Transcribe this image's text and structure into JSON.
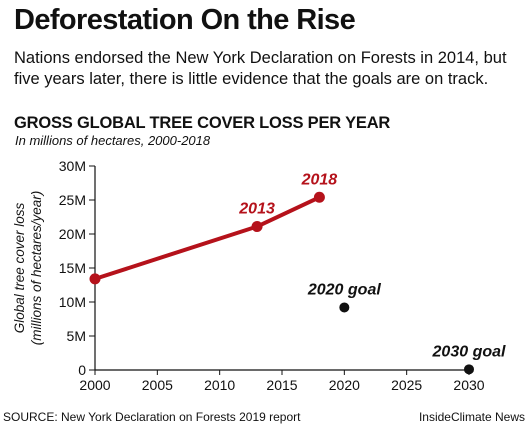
{
  "header": {
    "title": "Deforestation On the Rise",
    "subtitle": "Nations endorsed the New York Declaration on Forests in 2014, but five years later, there is little evidence that the goals are on track."
  },
  "chart_data": {
    "type": "line",
    "title": "GROSS GLOBAL TREE COVER LOSS PER YEAR",
    "subtitle": "In millions of hectares, 2000-2018",
    "xlabel": "",
    "ylabel": "Global tree cover loss (millions of hectares/year)",
    "ylabel_lines": [
      "Global tree cover loss",
      "(millions of hectares/year)"
    ],
    "xlim": [
      2000,
      2030
    ],
    "ylim": [
      0,
      30
    ],
    "x_ticks": [
      2000,
      2005,
      2010,
      2015,
      2020,
      2025,
      2030
    ],
    "y_ticks": [
      0,
      5,
      10,
      15,
      20,
      25,
      30
    ],
    "y_tick_labels": [
      "0",
      "5M",
      "10M",
      "15M",
      "20M",
      "25M",
      "30M"
    ],
    "grid": false,
    "series": [
      {
        "color": "#b5121b",
        "points": [
          {
            "x": 2000,
            "y": 13.4,
            "label": ""
          },
          {
            "x": 2013,
            "y": 21.1,
            "label": "2013"
          },
          {
            "x": 2018,
            "y": 25.4,
            "label": "2018"
          }
        ]
      }
    ],
    "goals": [
      {
        "x": 2020,
        "y": 9.2,
        "label": "2020 goal"
      },
      {
        "x": 2030,
        "y": 0.1,
        "label": "2030 goal"
      }
    ],
    "colors": {
      "series": "#b5121b",
      "goal": "#111111",
      "axis": "#111111"
    }
  },
  "footer": {
    "source": "SOURCE: New York Declaration on Forests 2019 report",
    "credit": "InsideClimate News"
  }
}
